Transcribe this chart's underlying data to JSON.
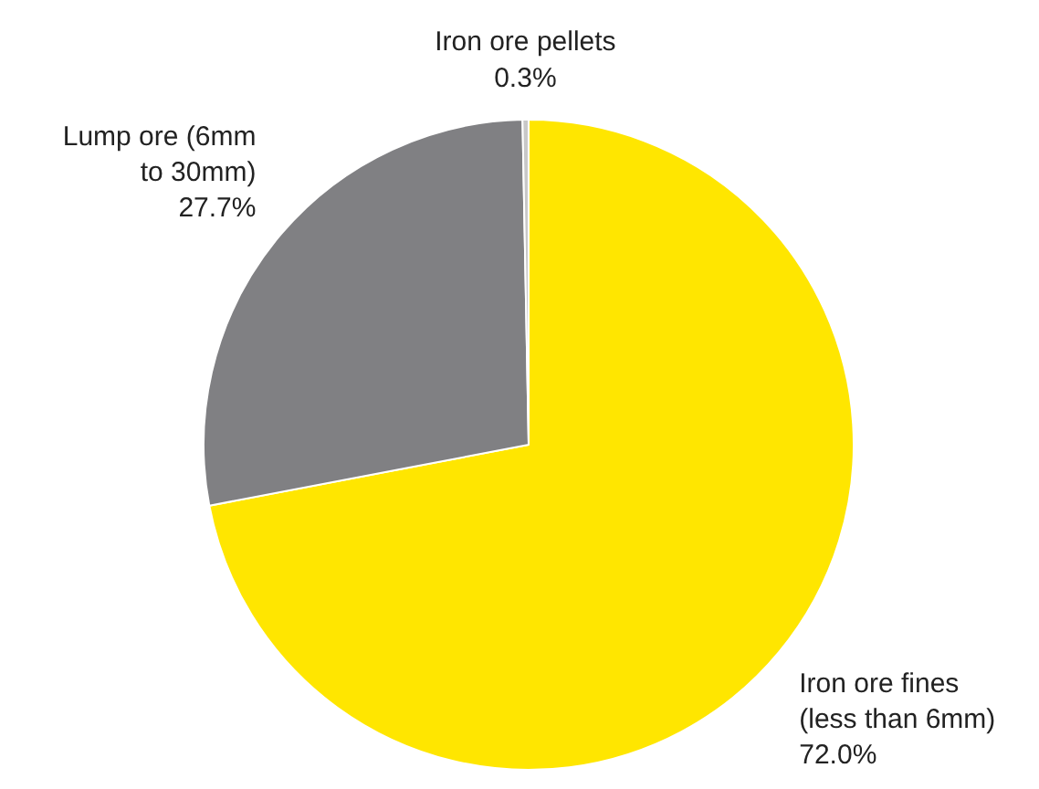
{
  "chart_data": {
    "type": "pie",
    "categories": [
      "Iron ore fines\n(less than 6mm)",
      "Lump ore (6mm\nto 30mm)",
      "Iron ore pellets"
    ],
    "values": [
      72.0,
      27.7,
      0.3
    ],
    "colors": [
      "#ffe600",
      "#808083",
      "#c8c8c8"
    ],
    "value_labels": [
      "72.0%",
      "27.7%",
      "0.3%"
    ],
    "legend": false
  }
}
